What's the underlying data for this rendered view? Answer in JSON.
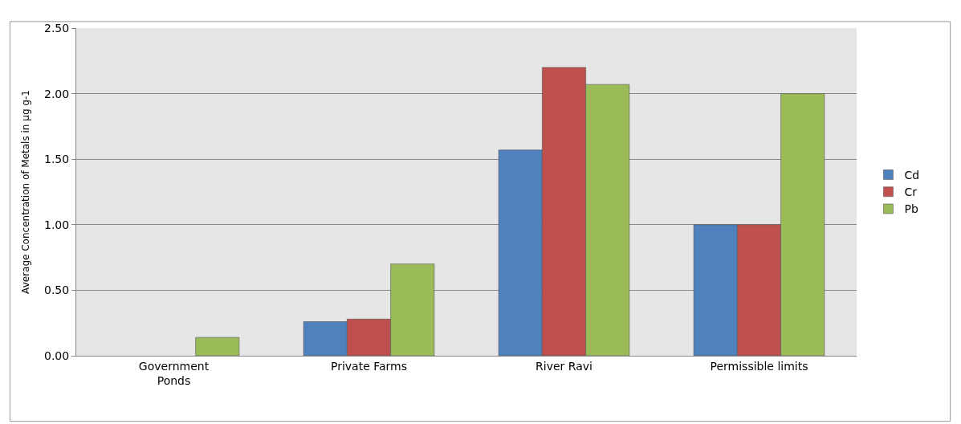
{
  "chart_data": {
    "type": "bar",
    "ylabel": "Average Concentration of Metals in µg g-1",
    "categories": [
      "Government\nPonds",
      "Private Farms",
      "River Ravi",
      "Permissible limits"
    ],
    "series": [
      {
        "name": "Cd",
        "color": "#4f81bd",
        "values": [
          null,
          0.26,
          1.57,
          1.0
        ]
      },
      {
        "name": "Cr",
        "color": "#c0504d",
        "values": [
          null,
          0.28,
          2.2,
          1.0
        ]
      },
      {
        "name": "Pb",
        "color": "#9bbb59",
        "values": [
          0.14,
          0.7,
          2.07,
          2.0
        ]
      }
    ],
    "ylim": [
      0,
      2.5
    ],
    "yticks": [
      {
        "value": 0,
        "label": "0.00"
      },
      {
        "value": 0.5,
        "label": "0.50"
      },
      {
        "value": 1,
        "label": "1.00"
      },
      {
        "value": 1.5,
        "label": "1.50"
      },
      {
        "value": 2,
        "label": "2.00"
      },
      {
        "value": 2.5,
        "label": "2.50"
      }
    ],
    "grid": "y",
    "legend": "right"
  }
}
